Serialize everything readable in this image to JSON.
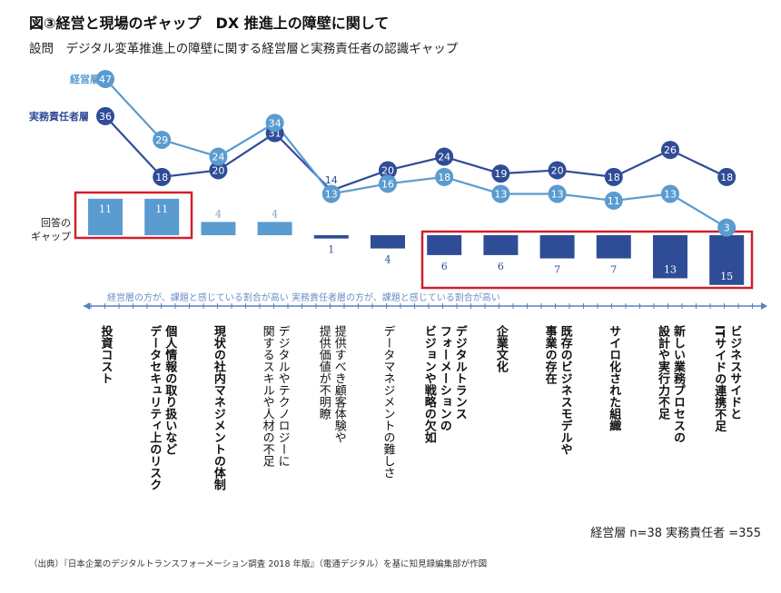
{
  "title": "図③経営と現場のギャップ　DX 推進上の障壁に関して",
  "subtitle": "設問　デジタル変革推進上の障壁に関する経営層と実務責任者の認識ギャップ",
  "gap_label": "回答の\nギャップ",
  "axis_note": "経営層の方が、課題と感じている割合が高い 実務責任者層の方が、課題と感じている割合が高い",
  "sample": "経営層 n=38  実務責任者 =355",
  "source": "（出典）『日本企業のデジタルトランスフォーメーション調査 2018 年版』（電通デジタル）を基に知見録編集部が作図",
  "colors": {
    "mgmt": "#5a9bd0",
    "staff": "#2f4c96",
    "highlight": "#d0202a"
  },
  "chart_data": {
    "type": "line",
    "categories": [
      "投資コスト",
      "個人情報の取り扱いなど\nデータセキュリティ上のリスク",
      "現状の社内マネジメントの体制",
      "デジタルやテクノロジーに\n関するスキルや人材の不足",
      "提供すべき顧客体験や\n提供価値が不明瞭",
      "データマネジメントの難しさ",
      "デジタルトランス\nフォーメーションの\nビジョンや戦略の欠如",
      "企業文化",
      "既存のビジネスモデルや\n事業の存在",
      "サイロ化された組織",
      "新しい業務プロセスの\n設計や実行力不足",
      "ビジネスサイドと\nITサイドの連携不足"
    ],
    "bold_categories": [
      true,
      true,
      true,
      false,
      false,
      false,
      true,
      true,
      true,
      true,
      true,
      true
    ],
    "series": [
      {
        "name": "経営層",
        "values": [
          47,
          29,
          24,
          34,
          13,
          16,
          18,
          13,
          13,
          11,
          13,
          3
        ]
      },
      {
        "name": "実務責任者層",
        "values": [
          36,
          18,
          20,
          31,
          14,
          20,
          24,
          19,
          20,
          18,
          26,
          18
        ]
      }
    ],
    "gap": {
      "label": "回答のギャップ",
      "values": [
        11,
        11,
        4,
        4,
        -1,
        -4,
        -6,
        -6,
        -7,
        -7,
        -13,
        -15
      ],
      "labels": [
        "11",
        "11",
        "4",
        "4",
        "1",
        "4",
        "6",
        "6",
        "7",
        "7",
        "13",
        "15"
      ]
    },
    "highlighted_groups": [
      [
        0,
        1
      ],
      [
        6,
        11
      ]
    ]
  }
}
